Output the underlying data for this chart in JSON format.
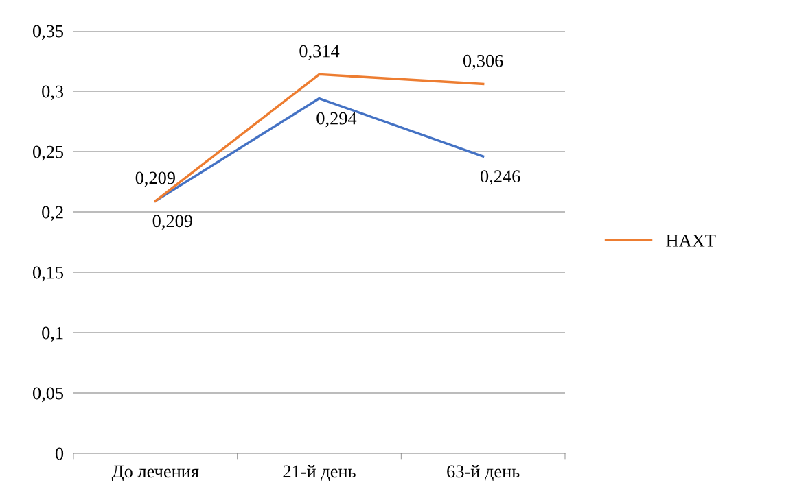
{
  "chart_data": {
    "type": "line",
    "categories": [
      "До лечения",
      "21-й день",
      "63-й день"
    ],
    "series": [
      {
        "color": "#4472c4",
        "values": [
          0.209,
          0.294,
          0.246
        ],
        "value_labels": [
          "0,209",
          "0,294",
          "0,246"
        ]
      },
      {
        "name": "НАХТ",
        "color": "#ed7d31",
        "values": [
          0.209,
          0.314,
          0.306
        ],
        "value_labels": [
          "0,209",
          "0,314",
          "0,306"
        ]
      }
    ],
    "ylim": [
      0,
      0.35
    ],
    "yticks": [
      {
        "value": 0,
        "label": "0"
      },
      {
        "value": 0.05,
        "label": "0,05"
      },
      {
        "value": 0.1,
        "label": "0,1"
      },
      {
        "value": 0.15,
        "label": "0,15"
      },
      {
        "value": 0.2,
        "label": "0,2"
      },
      {
        "value": 0.25,
        "label": "0,25"
      },
      {
        "value": 0.3,
        "label": "0,3"
      },
      {
        "value": 0.35,
        "label": "0,35"
      }
    ],
    "grid": "y",
    "legend": "right",
    "marker": "none",
    "line_style": "solid"
  }
}
